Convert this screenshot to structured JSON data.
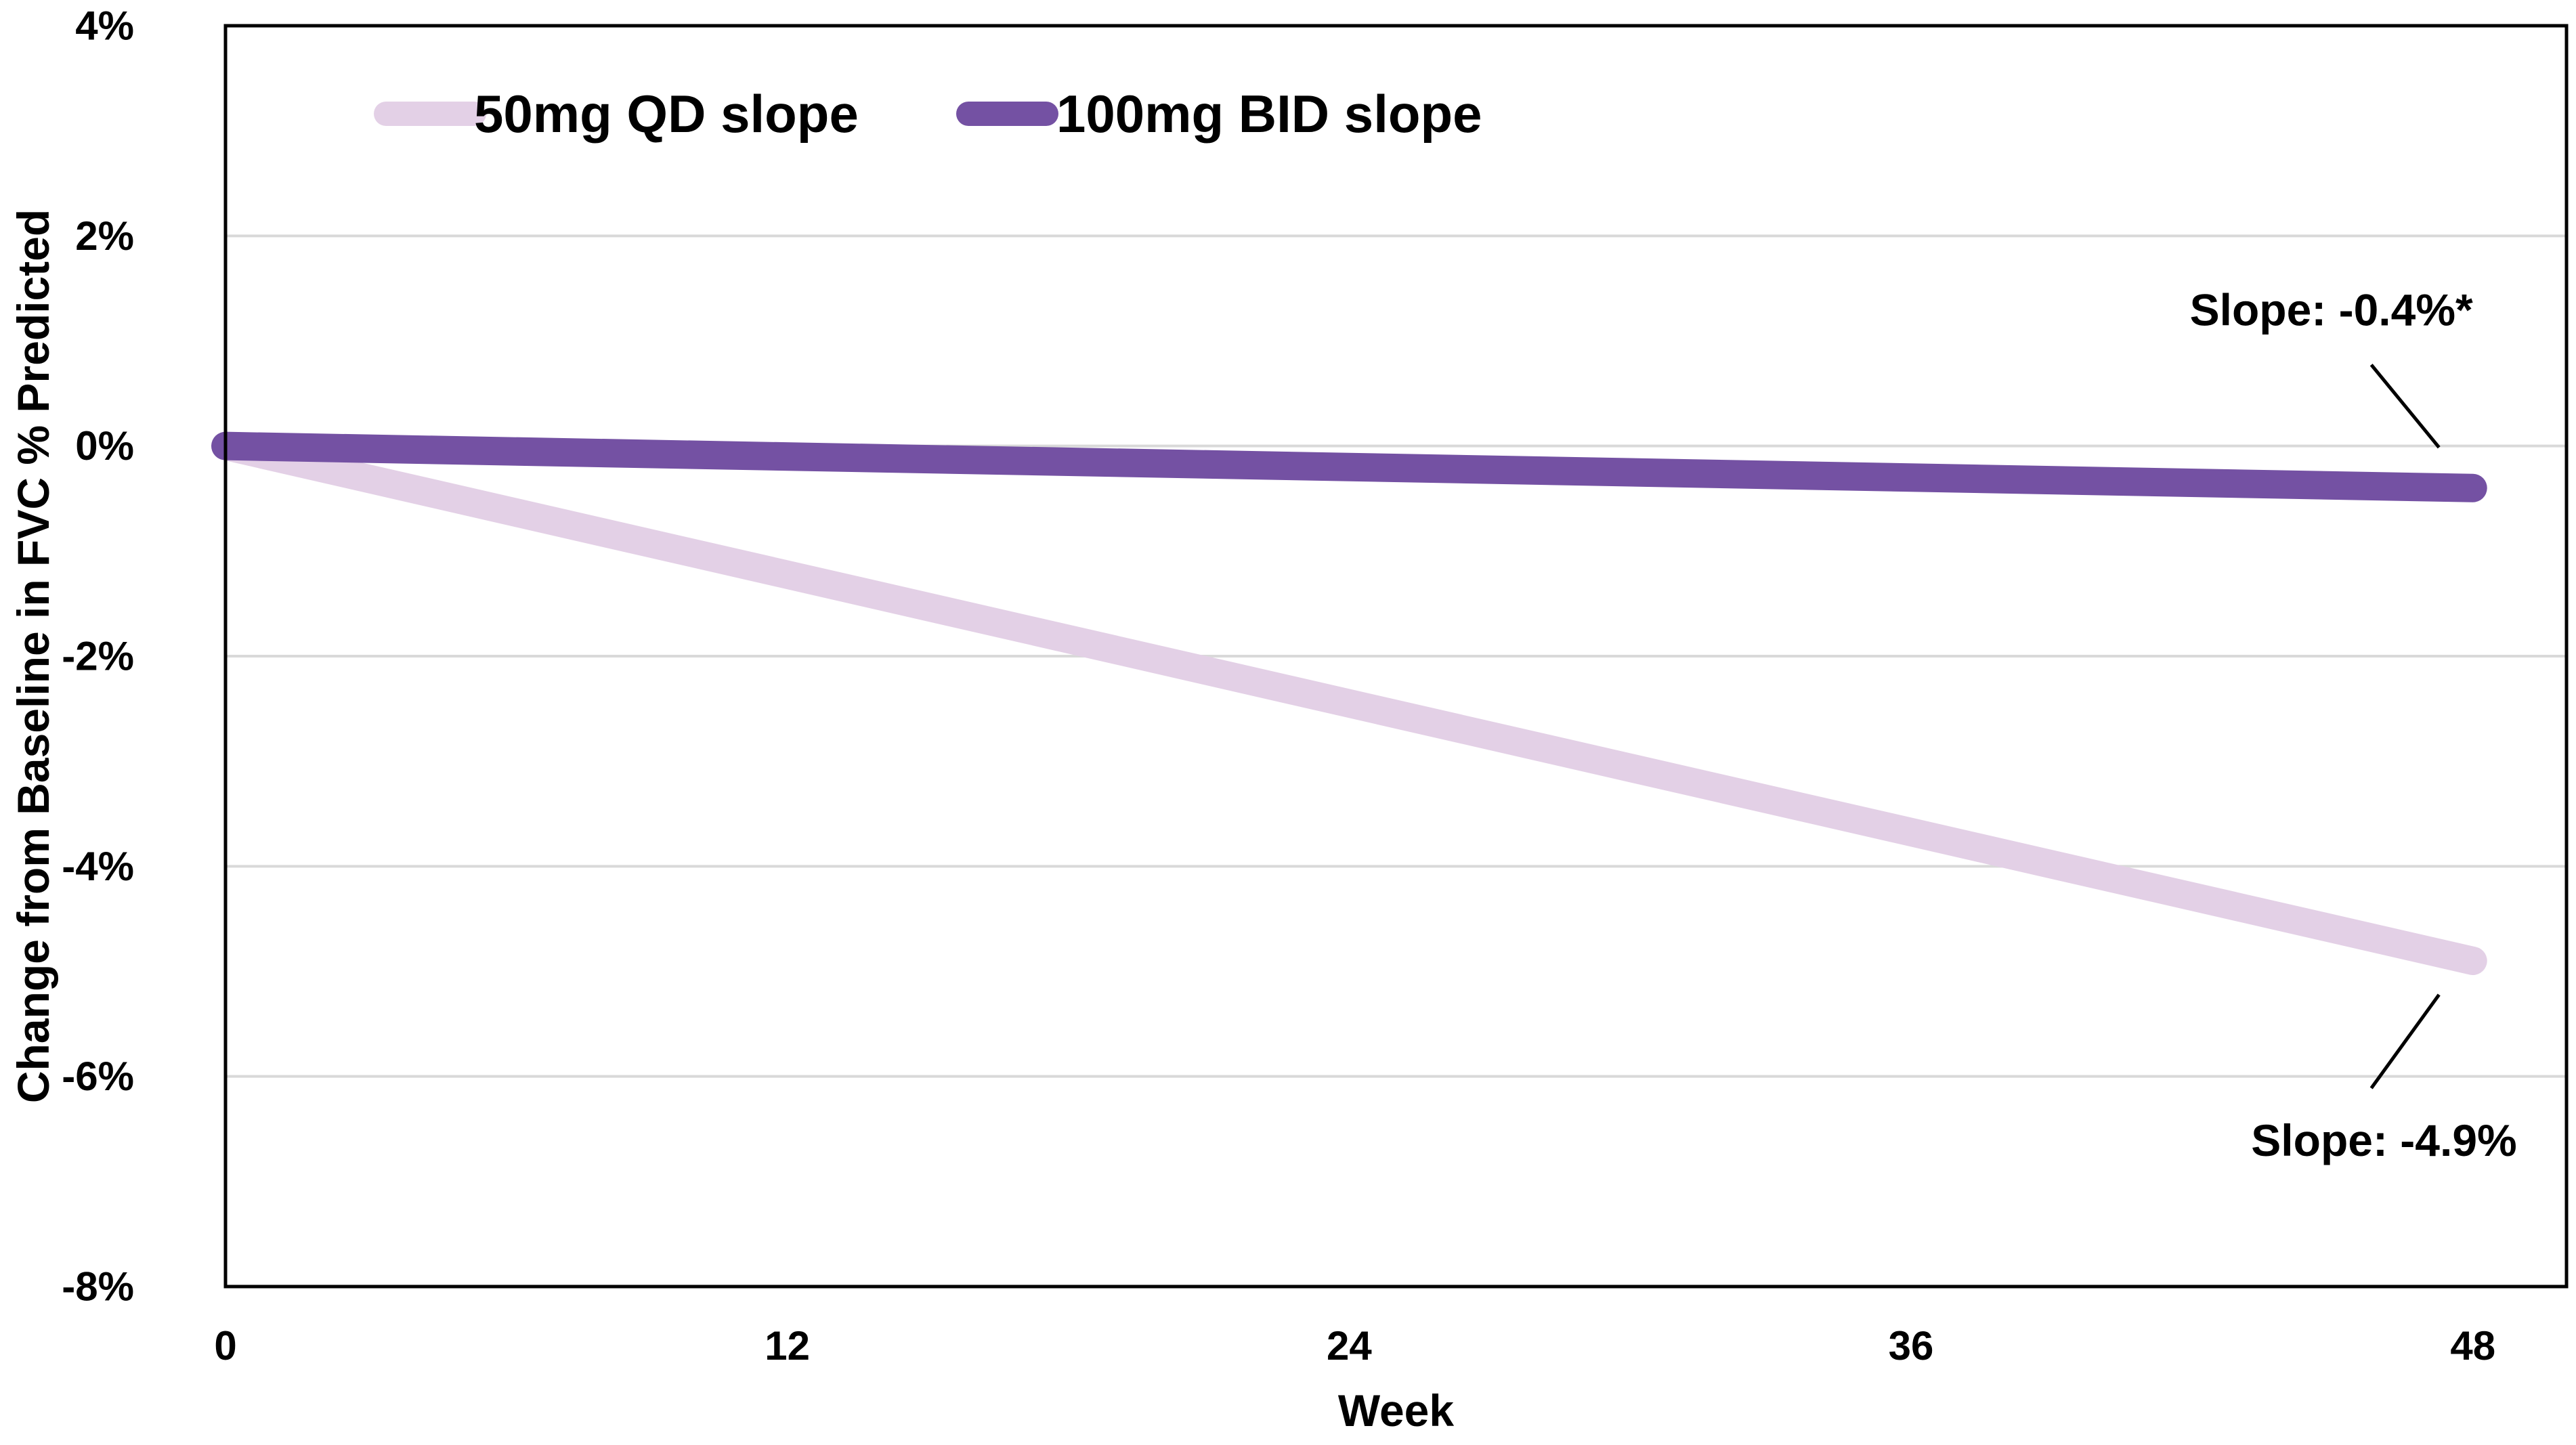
{
  "chart_data": {
    "type": "line",
    "title": "",
    "xlabel": "Week",
    "ylabel": "Change from Baseline in FVC % Predicted",
    "x_ticks": [
      0,
      12,
      24,
      36,
      48
    ],
    "x_tick_labels": [
      "0",
      "12",
      "24",
      "36",
      "48"
    ],
    "xlim": [
      0,
      50
    ],
    "y_ticks": [
      4,
      2,
      0,
      -2,
      -4,
      -6,
      -8
    ],
    "y_tick_labels": [
      "4%",
      "2%",
      "0%",
      "-2%",
      "-4%",
      "-6%",
      "-8%"
    ],
    "ylim": [
      -8,
      4
    ],
    "grid": true,
    "legend_position": "top-left",
    "series": [
      {
        "name": "50mg QD slope",
        "color": "#e3d0e6",
        "x": [
          0,
          48
        ],
        "y": [
          0,
          -4.9
        ]
      },
      {
        "name": "100mg BID slope",
        "color": "#7451a3",
        "x": [
          0,
          48
        ],
        "y": [
          0,
          -0.4
        ]
      }
    ],
    "annotations": [
      {
        "text": "Slope: -0.4%*",
        "series": "100mg BID slope",
        "x": 48,
        "y": -0.4,
        "placement": "above"
      },
      {
        "text": "Slope: -4.9%",
        "series": "50mg QD slope",
        "x": 48,
        "y": -4.9,
        "placement": "below"
      }
    ]
  }
}
